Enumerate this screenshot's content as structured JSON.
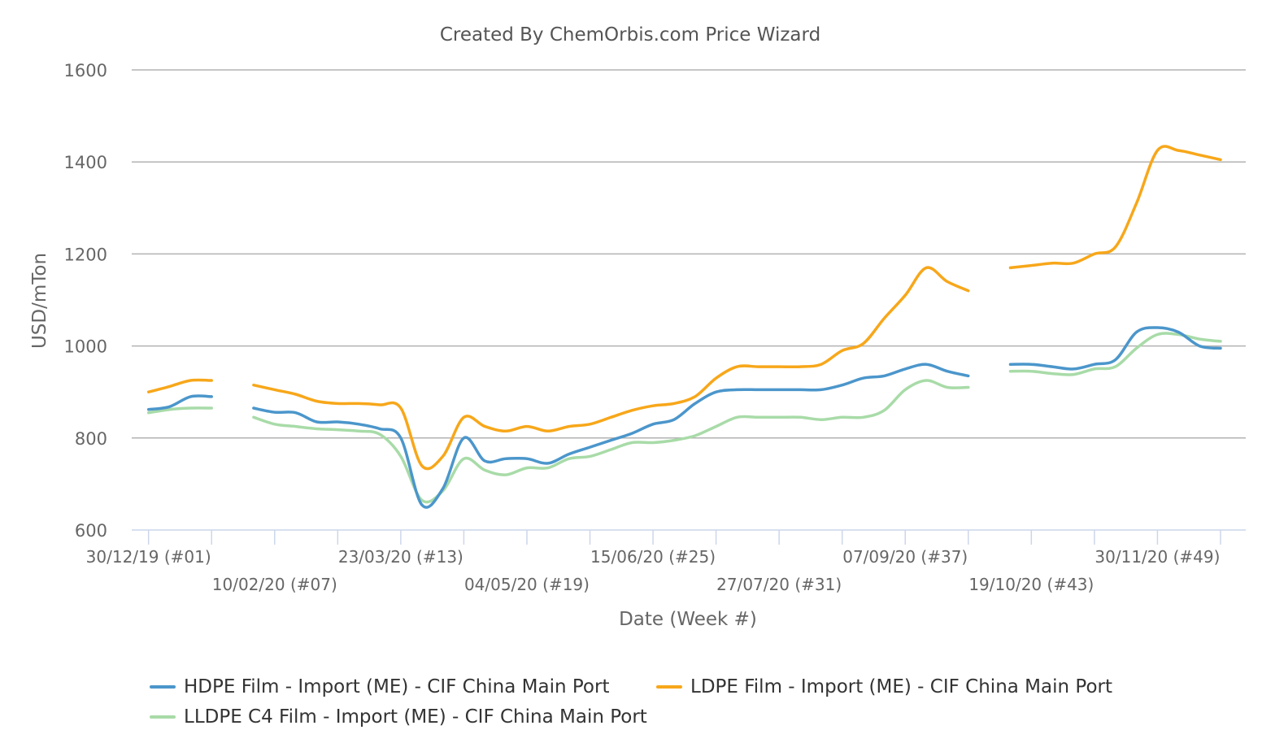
{
  "chart_data": {
    "type": "line",
    "title": "Created By ChemOrbis.com Price Wizard",
    "xlabel": "Date (Week #)",
    "ylabel": "USD/mTon",
    "ylim": [
      600,
      1600
    ],
    "yticks": [
      600,
      800,
      1000,
      1200,
      1400,
      1600
    ],
    "grid": true,
    "legend_position": "bottom",
    "x_tick_labels": [
      {
        "week": 1,
        "label": "30/12/19 (#01)"
      },
      {
        "week": 7,
        "label": "10/02/20 (#07)"
      },
      {
        "week": 13,
        "label": "23/03/20 (#13)"
      },
      {
        "week": 19,
        "label": "04/05/20 (#19)"
      },
      {
        "week": 25,
        "label": "15/06/20 (#25)"
      },
      {
        "week": 31,
        "label": "27/07/20 (#31)"
      },
      {
        "week": 37,
        "label": "07/09/20 (#37)"
      },
      {
        "week": 43,
        "label": "19/10/20 (#43)"
      },
      {
        "week": 49,
        "label": "30/11/20 (#49)"
      }
    ],
    "x_major_ticks": [
      1,
      4,
      7,
      10,
      13,
      16,
      19,
      22,
      25,
      28,
      31,
      34,
      37,
      40,
      43,
      46,
      49,
      52
    ],
    "x": [
      1,
      2,
      3,
      4,
      5,
      6,
      7,
      8,
      9,
      10,
      11,
      12,
      13,
      14,
      15,
      16,
      17,
      18,
      19,
      20,
      21,
      22,
      23,
      24,
      25,
      26,
      27,
      28,
      29,
      30,
      31,
      32,
      33,
      34,
      35,
      36,
      37,
      38,
      39,
      40,
      41,
      42,
      43,
      44,
      45,
      46,
      47,
      48,
      49,
      50,
      51,
      52
    ],
    "series": [
      {
        "name": "HDPE Film - Import (ME) - CIF China Main Port",
        "color": "#4b96cb",
        "values": [
          862,
          868,
          890,
          890,
          null,
          865,
          856,
          855,
          835,
          835,
          830,
          820,
          800,
          655,
          690,
          800,
          750,
          755,
          755,
          745,
          765,
          780,
          795,
          810,
          830,
          840,
          875,
          900,
          905,
          905,
          905,
          905,
          905,
          915,
          930,
          935,
          950,
          960,
          945,
          935,
          null,
          960,
          960,
          955,
          950,
          960,
          970,
          1030,
          1040,
          1030,
          1000,
          995
        ]
      },
      {
        "name": "LDPE Film - Import (ME) - CIF China Main Port",
        "color": "#f7a71a",
        "values": [
          900,
          912,
          925,
          925,
          null,
          915,
          905,
          895,
          880,
          875,
          875,
          872,
          865,
          740,
          760,
          845,
          825,
          815,
          825,
          815,
          825,
          830,
          845,
          860,
          870,
          875,
          890,
          930,
          955,
          955,
          955,
          955,
          960,
          990,
          1005,
          1060,
          1110,
          1170,
          1140,
          1120,
          null,
          1170,
          1175,
          1180,
          1180,
          1200,
          1215,
          1310,
          1425,
          1425,
          1415,
          1405
        ]
      },
      {
        "name": "LLDPE C4 Film - Import (ME) - CIF China Main Port",
        "color": "#a8dba8",
        "values": [
          855,
          862,
          865,
          865,
          null,
          845,
          830,
          825,
          820,
          818,
          815,
          808,
          760,
          665,
          685,
          755,
          730,
          720,
          735,
          735,
          755,
          760,
          775,
          790,
          790,
          795,
          805,
          825,
          845,
          845,
          845,
          845,
          840,
          845,
          845,
          860,
          905,
          925,
          910,
          910,
          null,
          945,
          945,
          940,
          938,
          950,
          955,
          995,
          1025,
          1025,
          1015,
          1010
        ]
      }
    ]
  }
}
